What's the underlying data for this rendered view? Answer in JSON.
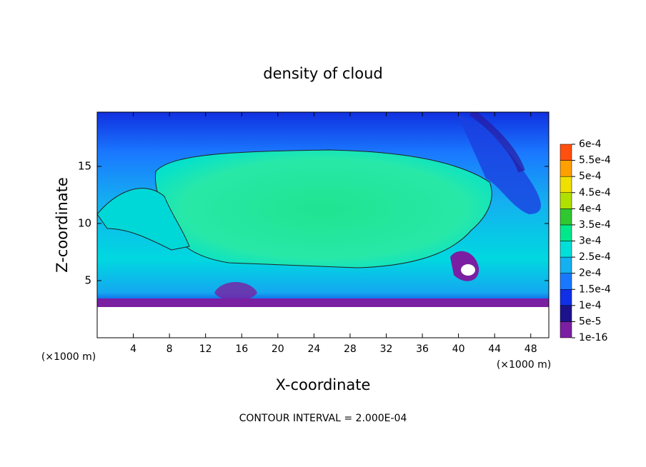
{
  "chart_data": {
    "type": "contour",
    "title": "density of cloud",
    "x_label": "X-coordinate",
    "y_label": "Z-coordinate",
    "x_unit": "(×1000 m)",
    "footer": "CONTOUR INTERVAL = 2.000E-04",
    "xlim": [
      0,
      50
    ],
    "ylim": [
      0,
      19.75
    ],
    "xticks": [
      4,
      8,
      12,
      16,
      20,
      24,
      28,
      32,
      36,
      40,
      44,
      48
    ],
    "yticks": [
      5,
      10,
      15
    ],
    "colorbar": {
      "ticks": [
        {
          "value": 1e-16,
          "label": "1e-16"
        },
        {
          "value": 5e-05,
          "label": "5e-5"
        },
        {
          "value": 0.0001,
          "label": "1e-4"
        },
        {
          "value": 0.00015,
          "label": "1.5e-4"
        },
        {
          "value": 0.0002,
          "label": "2e-4"
        },
        {
          "value": 0.00025,
          "label": "2.5e-4"
        },
        {
          "value": 0.0003,
          "label": "3e-4"
        },
        {
          "value": 0.00035,
          "label": "3.5e-4"
        },
        {
          "value": 0.0004,
          "label": "4e-4"
        },
        {
          "value": 0.00045,
          "label": "4.5e-4"
        },
        {
          "value": 0.0005,
          "label": "5e-4"
        },
        {
          "value": 0.00055,
          "label": "5.5e-4"
        },
        {
          "value": 0.0006,
          "label": "6e-4"
        }
      ],
      "colors": [
        "#7a1fa2",
        "#1c128c",
        "#1030e8",
        "#1a78ff",
        "#14b0f0",
        "#00e0d8",
        "#00e88c",
        "#30c830",
        "#b0e000",
        "#f0e000",
        "#ffa000",
        "#ff5010",
        "#f03838",
        "#ff9090"
      ]
    }
  }
}
